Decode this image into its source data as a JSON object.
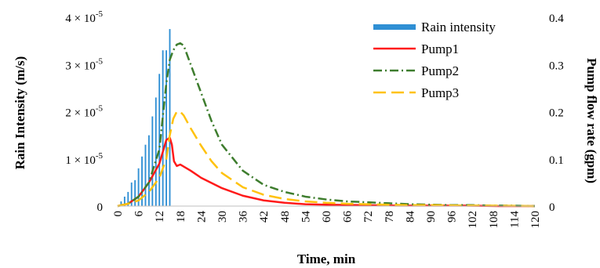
{
  "chart_data": {
    "type": "bar+line",
    "xlabel": "Time, min",
    "ylabel_left": "Rain Intensity (m/s)",
    "ylabel_right": "Pump flow rate (gpm)",
    "xlim": [
      0,
      120
    ],
    "x_ticks": [
      0,
      6,
      12,
      18,
      24,
      30,
      36,
      42,
      48,
      54,
      60,
      66,
      72,
      78,
      84,
      90,
      96,
      102,
      108,
      114,
      120
    ],
    "y_left_lim": [
      0,
      4e-05
    ],
    "y_left_ticks": [
      {
        "value": 0,
        "mant": "0",
        "exp": ""
      },
      {
        "value": 1e-05,
        "mant": "1 × 10",
        "exp": "-5"
      },
      {
        "value": 2e-05,
        "mant": "2 × 10",
        "exp": "-5"
      },
      {
        "value": 3e-05,
        "mant": "3 × 10",
        "exp": "-5"
      },
      {
        "value": 4e-05,
        "mant": "4 × 10",
        "exp": "-5"
      }
    ],
    "y_right_lim": [
      0,
      0.4
    ],
    "y_right_ticks": [
      "0",
      "0.1",
      "0.2",
      "0.3",
      "0.4"
    ],
    "grid": false,
    "legend_position": "top-right",
    "bars": {
      "name": "Rain intensity",
      "color": "#2f8fd4",
      "x": [
        1,
        2,
        3,
        4,
        5,
        6,
        7,
        8,
        9,
        10,
        11,
        12,
        13,
        14,
        15
      ],
      "values": [
        1e-06,
        2e-06,
        3e-06,
        5e-06,
        5.5e-06,
        8e-06,
        1.05e-05,
        1.3e-05,
        1.5e-05,
        1.9e-05,
        2.3e-05,
        2.8e-05,
        3.3e-05,
        3.3e-05,
        3.75e-05
      ]
    },
    "series": [
      {
        "name": "Pump1",
        "color": "#ff1a1a",
        "dash": "",
        "x": [
          0,
          3,
          6,
          9,
          12,
          14,
          15,
          15.6,
          16.2,
          17,
          18,
          21,
          24,
          30,
          36,
          42,
          48,
          54,
          60,
          70,
          80,
          90,
          100,
          110,
          120
        ],
        "y": [
          0,
          0.005,
          0.02,
          0.05,
          0.09,
          0.14,
          0.145,
          0.13,
          0.095,
          0.085,
          0.088,
          0.075,
          0.06,
          0.038,
          0.022,
          0.012,
          0.007,
          0.004,
          0.003,
          0.002,
          0.001,
          0.001,
          0.001,
          0,
          0
        ]
      },
      {
        "name": "Pump2",
        "color": "#3e7d2e",
        "dash": "11 4 2 4",
        "x": [
          0,
          3,
          6,
          9,
          12,
          14,
          15,
          16,
          17,
          18,
          19,
          21,
          24,
          27,
          30,
          36,
          42,
          48,
          54,
          60,
          66,
          72,
          78,
          84,
          90,
          96,
          102,
          108,
          114,
          120
        ],
        "y": [
          0,
          0.005,
          0.02,
          0.05,
          0.12,
          0.26,
          0.31,
          0.33,
          0.342,
          0.345,
          0.34,
          0.3,
          0.24,
          0.18,
          0.13,
          0.075,
          0.045,
          0.03,
          0.02,
          0.014,
          0.01,
          0.008,
          0.006,
          0.004,
          0.003,
          0.002,
          0.002,
          0.001,
          0.001,
          0
        ]
      },
      {
        "name": "Pump3",
        "color": "#ffc20e",
        "dash": "16 7",
        "x": [
          0,
          3,
          6,
          9,
          12,
          14,
          15,
          16,
          17,
          18,
          19,
          21,
          24,
          27,
          30,
          36,
          42,
          48,
          54,
          60,
          66,
          72,
          78,
          84,
          90,
          100,
          110,
          120
        ],
        "y": [
          0,
          0.005,
          0.012,
          0.03,
          0.06,
          0.1,
          0.15,
          0.185,
          0.2,
          0.2,
          0.192,
          0.165,
          0.128,
          0.095,
          0.07,
          0.04,
          0.024,
          0.015,
          0.01,
          0.007,
          0.005,
          0.004,
          0.003,
          0.002,
          0.002,
          0.001,
          0.001,
          0
        ]
      }
    ]
  }
}
